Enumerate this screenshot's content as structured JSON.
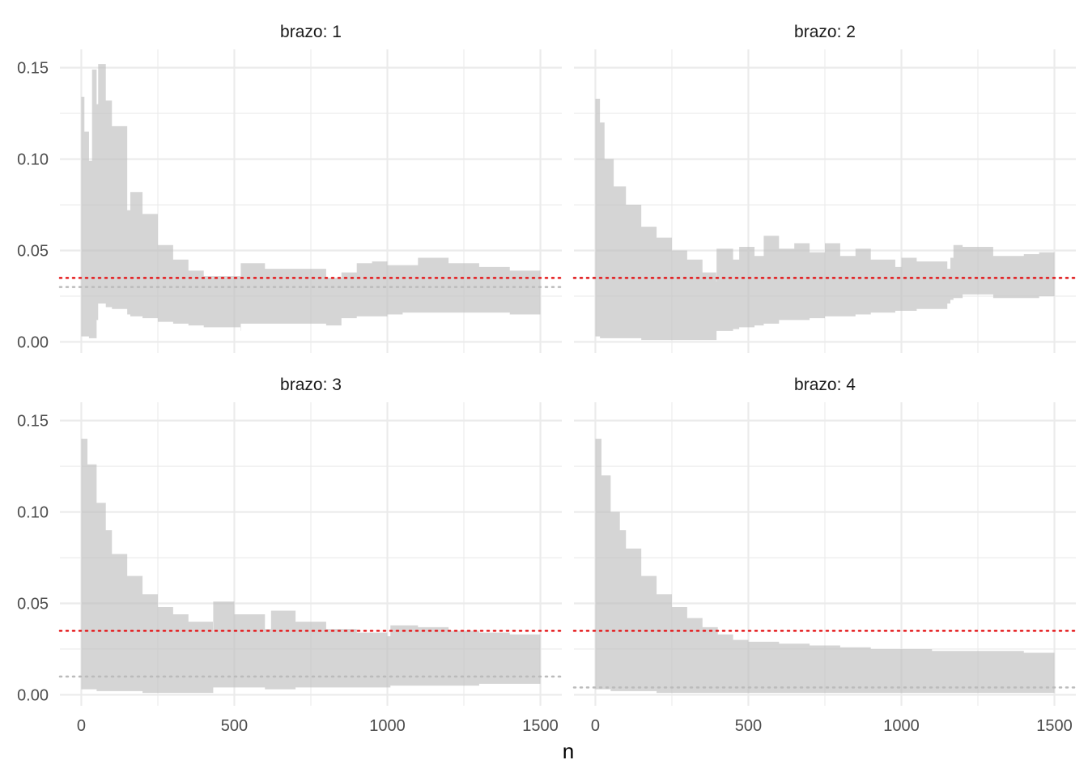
{
  "chart_data": {
    "type": "area",
    "xlabel": "n",
    "ylabel": "",
    "xlim": [
      -70,
      1570
    ],
    "ylim": [
      -0.006,
      0.16
    ],
    "x_ticks": [
      0,
      500,
      1000,
      1500
    ],
    "x_tick_labels": [
      "0",
      "500",
      "1000",
      "1500"
    ],
    "y_ticks": [
      0.0,
      0.05,
      0.1,
      0.15
    ],
    "y_tick_labels": [
      "0.00",
      "0.05",
      "0.10",
      "0.15"
    ],
    "grid": true,
    "colors": {
      "band": "#bfbfbf",
      "reference": "#e41a1c",
      "true_mean": "#bbbbbb",
      "grid": "#ebebeb"
    },
    "reference_line": 0.035,
    "panels": [
      {
        "label": "brazo: 1",
        "true_mean": 0.03,
        "band": [
          [
            0,
            0.003,
            0.134
          ],
          [
            10,
            0.003,
            0.115
          ],
          [
            25,
            0.002,
            0.099
          ],
          [
            35,
            0.002,
            0.149
          ],
          [
            50,
            0.012,
            0.13
          ],
          [
            55,
            0.021,
            0.152
          ],
          [
            80,
            0.019,
            0.132
          ],
          [
            100,
            0.018,
            0.118
          ],
          [
            150,
            0.015,
            0.072
          ],
          [
            160,
            0.014,
            0.082
          ],
          [
            200,
            0.013,
            0.07
          ],
          [
            250,
            0.011,
            0.053
          ],
          [
            300,
            0.01,
            0.045
          ],
          [
            350,
            0.009,
            0.039
          ],
          [
            400,
            0.008,
            0.036
          ],
          [
            520,
            0.006,
            0.034
          ],
          [
            521,
            0.01,
            0.043
          ],
          [
            600,
            0.01,
            0.04
          ],
          [
            800,
            0.009,
            0.035
          ],
          [
            850,
            0.013,
            0.038
          ],
          [
            900,
            0.014,
            0.043
          ],
          [
            950,
            0.014,
            0.044
          ],
          [
            1000,
            0.015,
            0.042
          ],
          [
            1050,
            0.016,
            0.042
          ],
          [
            1100,
            0.016,
            0.046
          ],
          [
            1200,
            0.016,
            0.043
          ],
          [
            1300,
            0.016,
            0.041
          ],
          [
            1400,
            0.015,
            0.039
          ],
          [
            1500,
            0.015,
            0.038
          ]
        ]
      },
      {
        "label": "brazo: 2",
        "true_mean": 0.035,
        "band": [
          [
            0,
            0.003,
            0.133
          ],
          [
            15,
            0.002,
            0.12
          ],
          [
            30,
            0.002,
            0.1
          ],
          [
            60,
            0.002,
            0.085
          ],
          [
            100,
            0.002,
            0.075
          ],
          [
            150,
            0.001,
            0.063
          ],
          [
            200,
            0.001,
            0.057
          ],
          [
            250,
            0.001,
            0.05
          ],
          [
            300,
            0.001,
            0.045
          ],
          [
            350,
            0.001,
            0.038
          ],
          [
            395,
            0.001,
            0.033
          ],
          [
            396,
            0.006,
            0.051
          ],
          [
            450,
            0.007,
            0.045
          ],
          [
            470,
            0.008,
            0.052
          ],
          [
            520,
            0.009,
            0.047
          ],
          [
            550,
            0.01,
            0.058
          ],
          [
            600,
            0.012,
            0.051
          ],
          [
            650,
            0.012,
            0.054
          ],
          [
            700,
            0.013,
            0.049
          ],
          [
            750,
            0.014,
            0.054
          ],
          [
            800,
            0.014,
            0.047
          ],
          [
            850,
            0.015,
            0.051
          ],
          [
            900,
            0.016,
            0.045
          ],
          [
            980,
            0.017,
            0.041
          ],
          [
            1000,
            0.017,
            0.046
          ],
          [
            1050,
            0.018,
            0.044
          ],
          [
            1150,
            0.021,
            0.04
          ],
          [
            1160,
            0.023,
            0.046
          ],
          [
            1170,
            0.024,
            0.053
          ],
          [
            1200,
            0.026,
            0.052
          ],
          [
            1300,
            0.024,
            0.047
          ],
          [
            1400,
            0.024,
            0.048
          ],
          [
            1450,
            0.025,
            0.049
          ],
          [
            1500,
            0.025,
            0.047
          ]
        ]
      },
      {
        "label": "brazo: 3",
        "true_mean": 0.01,
        "band": [
          [
            0,
            0.003,
            0.14
          ],
          [
            20,
            0.003,
            0.126
          ],
          [
            50,
            0.002,
            0.105
          ],
          [
            80,
            0.002,
            0.09
          ],
          [
            100,
            0.002,
            0.077
          ],
          [
            150,
            0.002,
            0.065
          ],
          [
            200,
            0.001,
            0.055
          ],
          [
            250,
            0.001,
            0.048
          ],
          [
            300,
            0.001,
            0.044
          ],
          [
            350,
            0.001,
            0.04
          ],
          [
            430,
            0.001,
            0.034
          ],
          [
            431,
            0.004,
            0.051
          ],
          [
            500,
            0.004,
            0.044
          ],
          [
            600,
            0.003,
            0.036
          ],
          [
            620,
            0.003,
            0.046
          ],
          [
            700,
            0.004,
            0.04
          ],
          [
            800,
            0.004,
            0.036
          ],
          [
            900,
            0.004,
            0.034
          ],
          [
            1000,
            0.004,
            0.032
          ],
          [
            1010,
            0.005,
            0.038
          ],
          [
            1100,
            0.005,
            0.037
          ],
          [
            1200,
            0.005,
            0.035
          ],
          [
            1300,
            0.006,
            0.034
          ],
          [
            1400,
            0.006,
            0.033
          ],
          [
            1500,
            0.006,
            0.033
          ]
        ]
      },
      {
        "label": "brazo: 4",
        "true_mean": 0.004,
        "band": [
          [
            0,
            0.003,
            0.14
          ],
          [
            20,
            0.003,
            0.12
          ],
          [
            50,
            0.002,
            0.1
          ],
          [
            80,
            0.002,
            0.09
          ],
          [
            100,
            0.002,
            0.08
          ],
          [
            150,
            0.002,
            0.065
          ],
          [
            200,
            0.001,
            0.055
          ],
          [
            250,
            0.001,
            0.048
          ],
          [
            300,
            0.001,
            0.042
          ],
          [
            350,
            0.001,
            0.037
          ],
          [
            400,
            0.001,
            0.033
          ],
          [
            450,
            0.001,
            0.03
          ],
          [
            500,
            0.001,
            0.029
          ],
          [
            600,
            0.001,
            0.028
          ],
          [
            700,
            0.001,
            0.027
          ],
          [
            800,
            0.001,
            0.026
          ],
          [
            900,
            0.001,
            0.025
          ],
          [
            1000,
            0.001,
            0.025
          ],
          [
            1100,
            0.001,
            0.024
          ],
          [
            1200,
            0.001,
            0.024
          ],
          [
            1300,
            0.001,
            0.024
          ],
          [
            1400,
            0.001,
            0.023
          ],
          [
            1500,
            0.001,
            0.023
          ]
        ]
      }
    ]
  }
}
